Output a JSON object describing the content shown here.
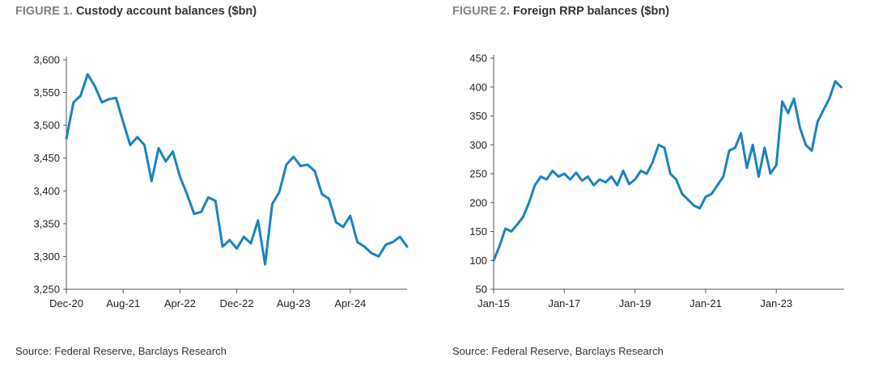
{
  "colors": {
    "line": "#1b82be",
    "axis": "#555555",
    "figure_label": "#808080",
    "title": "#333333"
  },
  "figures": [
    {
      "label": "FIGURE 1.",
      "title": "Custody account balances ($bn)",
      "source": "Source: Federal Reserve, Barclays Research"
    },
    {
      "label": "FIGURE 2.",
      "title": "Foreign RRP balances ($bn)",
      "source": "Source: Federal Reserve, Barclays Research"
    }
  ],
  "chart_data": [
    {
      "type": "line",
      "title": "Custody account balances ($bn)",
      "xlabel": "",
      "ylabel": "",
      "x_range": [
        "2020-12",
        "2024-12"
      ],
      "ylim": [
        3250,
        3600
      ],
      "yticks": [
        3250,
        3300,
        3350,
        3400,
        3450,
        3500,
        3550,
        3600
      ],
      "ytick_labels": [
        "3,250",
        "3,300",
        "3,350",
        "3,400",
        "3,450",
        "3,500",
        "3,550",
        "3,600"
      ],
      "xticks": [
        "2020-12",
        "2021-08",
        "2022-04",
        "2022-12",
        "2023-08",
        "2024-04"
      ],
      "xtick_labels": [
        "Dec-20",
        "Aug-21",
        "Apr-22",
        "Dec-22",
        "Aug-23",
        "Apr-24"
      ],
      "grid": false,
      "series": [
        {
          "x": [
            "2020-12",
            "2021-01",
            "2021-02",
            "2021-03",
            "2021-04",
            "2021-05",
            "2021-06",
            "2021-07",
            "2021-08",
            "2021-09",
            "2021-10",
            "2021-11",
            "2021-12",
            "2022-01",
            "2022-02",
            "2022-03",
            "2022-04",
            "2022-05",
            "2022-06",
            "2022-07",
            "2022-08",
            "2022-09",
            "2022-10",
            "2022-11",
            "2022-12",
            "2023-01",
            "2023-02",
            "2023-03",
            "2023-04",
            "2023-05",
            "2023-06",
            "2023-07",
            "2023-08",
            "2023-09",
            "2023-10",
            "2023-11",
            "2023-12",
            "2024-01",
            "2024-02",
            "2024-03",
            "2024-04",
            "2024-05",
            "2024-06",
            "2024-07",
            "2024-08",
            "2024-09",
            "2024-10",
            "2024-11",
            "2024-12"
          ],
          "values": [
            3480,
            3535,
            3545,
            3578,
            3560,
            3535,
            3540,
            3542,
            3505,
            3470,
            3482,
            3470,
            3415,
            3465,
            3445,
            3460,
            3422,
            3395,
            3365,
            3368,
            3390,
            3385,
            3315,
            3325,
            3312,
            3330,
            3320,
            3355,
            3288,
            3380,
            3398,
            3440,
            3452,
            3438,
            3440,
            3430,
            3395,
            3388,
            3352,
            3345,
            3362,
            3322,
            3315,
            3305,
            3300,
            3318,
            3322,
            3330,
            3315
          ]
        }
      ]
    },
    {
      "type": "line",
      "title": "Foreign RRP balances ($bn)",
      "xlabel": "",
      "ylabel": "",
      "x_range": [
        "2015-01",
        "2024-12"
      ],
      "ylim": [
        50,
        450
      ],
      "yticks": [
        50,
        100,
        150,
        200,
        250,
        300,
        350,
        400,
        450
      ],
      "ytick_labels": [
        "50",
        "100",
        "150",
        "200",
        "250",
        "300",
        "350",
        "400",
        "450"
      ],
      "xticks": [
        "2015-01",
        "2017-01",
        "2019-01",
        "2021-01",
        "2023-01"
      ],
      "xtick_labels": [
        "Jan-15",
        "Jan-17",
        "Jan-19",
        "Jan-21",
        "Jan-23"
      ],
      "grid": false,
      "series": [
        {
          "x": [
            "2015-01",
            "2015-03",
            "2015-05",
            "2015-07",
            "2015-09",
            "2015-11",
            "2016-01",
            "2016-03",
            "2016-05",
            "2016-07",
            "2016-09",
            "2016-11",
            "2017-01",
            "2017-03",
            "2017-05",
            "2017-07",
            "2017-09",
            "2017-11",
            "2018-01",
            "2018-03",
            "2018-05",
            "2018-07",
            "2018-09",
            "2018-11",
            "2019-01",
            "2019-03",
            "2019-05",
            "2019-07",
            "2019-09",
            "2019-11",
            "2020-01",
            "2020-03",
            "2020-05",
            "2020-07",
            "2020-09",
            "2020-11",
            "2021-01",
            "2021-03",
            "2021-05",
            "2021-07",
            "2021-09",
            "2021-11",
            "2022-01",
            "2022-03",
            "2022-05",
            "2022-07",
            "2022-09",
            "2022-11",
            "2023-01",
            "2023-03",
            "2023-05",
            "2023-07",
            "2023-09",
            "2023-11",
            "2024-01",
            "2024-03",
            "2024-05",
            "2024-07",
            "2024-09",
            "2024-11"
          ],
          "values": [
            100,
            125,
            155,
            150,
            162,
            175,
            200,
            230,
            245,
            240,
            255,
            245,
            250,
            240,
            252,
            238,
            245,
            230,
            240,
            235,
            245,
            230,
            255,
            232,
            240,
            255,
            250,
            270,
            300,
            295,
            250,
            240,
            215,
            205,
            195,
            190,
            210,
            215,
            230,
            245,
            290,
            295,
            320,
            260,
            300,
            245,
            295,
            250,
            265,
            375,
            355,
            380,
            330,
            300,
            290,
            340,
            360,
            380,
            410,
            400
          ]
        }
      ]
    }
  ]
}
